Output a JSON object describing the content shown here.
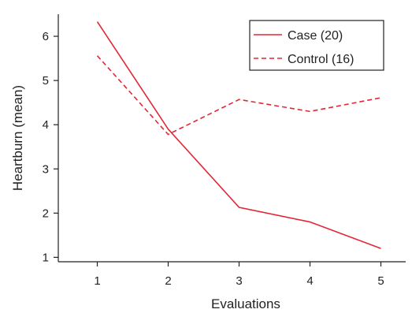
{
  "chart_data": {
    "type": "line",
    "xlabel": "Evaluations",
    "ylabel": "Heartburn (mean)",
    "x": [
      1,
      2,
      3,
      4,
      5
    ],
    "xlim": [
      0.45,
      5.35
    ],
    "ylim": [
      0.9,
      6.5
    ],
    "xticks": [
      "1",
      "2",
      "3",
      "4",
      "5"
    ],
    "yticks": [
      "1",
      "2",
      "3",
      "4",
      "5",
      "6"
    ],
    "grid": false,
    "legend_position": "top-right",
    "series": [
      {
        "name": "Case (20)",
        "values": [
          6.33,
          3.9,
          2.13,
          1.8,
          1.2
        ],
        "color": "#e32636",
        "dash": "solid"
      },
      {
        "name": "Control (16)",
        "values": [
          5.56,
          3.78,
          4.57,
          4.3,
          4.61
        ],
        "color": "#e32636",
        "dash": "dashed"
      }
    ]
  }
}
